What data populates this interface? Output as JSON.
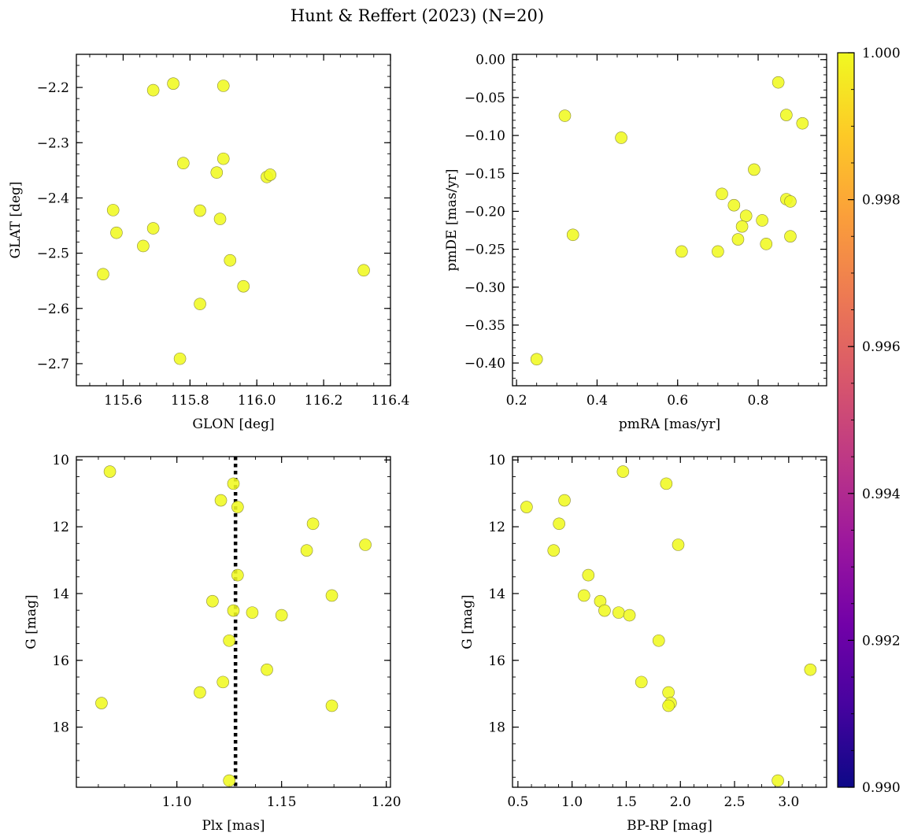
{
  "figure_title": "Hunt & Reffert (2023) (N=20)",
  "colors": {
    "point_fill": "#f0f921",
    "point_edge": "#8a8a3a",
    "colorbar_stops": [
      "#0d0887",
      "#46039f",
      "#7201a8",
      "#9c179e",
      "#bd3786",
      "#d8576b",
      "#ed7953",
      "#fb9f3a",
      "#fdca26",
      "#f0f921"
    ]
  },
  "colorbar": {
    "min": 0.99,
    "max": 1.0,
    "ticks": [
      "0.990",
      "0.992",
      "0.994",
      "0.996",
      "0.998",
      "1.000"
    ]
  },
  "chart_data": [
    {
      "id": "glon-glat",
      "type": "scatter",
      "xlabel": "GLON [deg]",
      "ylabel": "GLAT [deg]",
      "xlim": [
        115.46,
        116.4
      ],
      "ylim": [
        -2.74,
        -2.14
      ],
      "xticks": [
        "115.6",
        "115.8",
        "116.0",
        "116.2",
        "116.4"
      ],
      "yticks": [
        "-2.2",
        "-2.3",
        "-2.4",
        "-2.5",
        "-2.6",
        "-2.7"
      ],
      "yinvert": false,
      "vline": null,
      "x": [
        115.69,
        115.75,
        115.9,
        115.78,
        115.88,
        115.9,
        116.03,
        116.04,
        115.57,
        115.83,
        115.58,
        115.69,
        115.89,
        115.66,
        115.92,
        115.54,
        116.32,
        115.96,
        115.83,
        115.77
      ],
      "y": [
        -2.205,
        -2.193,
        -2.197,
        -2.337,
        -2.354,
        -2.329,
        -2.362,
        -2.358,
        -2.422,
        -2.423,
        -2.463,
        -2.455,
        -2.438,
        -2.487,
        -2.513,
        -2.538,
        -2.531,
        -2.56,
        -2.592,
        -2.691
      ]
    },
    {
      "id": "pmra-pmde",
      "type": "scatter",
      "xlabel": "pmRA [mas/yr]",
      "ylabel": "pmDE [mas/yr]",
      "xlim": [
        0.19,
        0.97
      ],
      "ylim": [
        -0.43,
        0.007
      ],
      "xticks": [
        "0.2",
        "0.4",
        "0.6",
        "0.8"
      ],
      "yticks": [
        "0.00",
        "-0.05",
        "-0.10",
        "-0.15",
        "-0.20",
        "-0.25",
        "-0.30",
        "-0.35",
        "-0.40"
      ],
      "yinvert": false,
      "vline": null,
      "x": [
        0.85,
        0.32,
        0.87,
        0.91,
        0.46,
        0.79,
        0.71,
        0.74,
        0.87,
        0.88,
        0.77,
        0.81,
        0.76,
        0.34,
        0.75,
        0.88,
        0.82,
        0.61,
        0.7,
        0.25
      ],
      "y": [
        -0.03,
        -0.074,
        -0.073,
        -0.084,
        -0.103,
        -0.145,
        -0.177,
        -0.192,
        -0.184,
        -0.187,
        -0.206,
        -0.212,
        -0.22,
        -0.231,
        -0.237,
        -0.233,
        -0.243,
        -0.253,
        -0.253,
        -0.395
      ]
    },
    {
      "id": "plx-g",
      "type": "scatter",
      "xlabel": "Plx [mas]",
      "ylabel": "G [mag]",
      "xlim": [
        1.052,
        1.202
      ],
      "ylim": [
        9.9,
        19.8
      ],
      "xticks": [
        "1.10",
        "1.15",
        "1.20"
      ],
      "yticks": [
        "10",
        "12",
        "14",
        "16",
        "18"
      ],
      "yinvert": true,
      "vline": 1.128,
      "x": [
        1.068,
        1.127,
        1.121,
        1.129,
        1.165,
        1.19,
        1.162,
        1.129,
        1.174,
        1.117,
        1.127,
        1.136,
        1.15,
        1.125,
        1.143,
        1.122,
        1.111,
        1.064,
        1.174,
        1.125
      ],
      "y": [
        10.35,
        10.71,
        11.21,
        11.41,
        11.91,
        12.54,
        12.71,
        13.45,
        14.06,
        14.23,
        14.51,
        14.57,
        14.65,
        15.41,
        16.28,
        16.65,
        16.96,
        17.28,
        17.36,
        19.6
      ]
    },
    {
      "id": "bprp-g",
      "type": "scatter",
      "xlabel": "BP-RP [mag]",
      "ylabel": "G [mag]",
      "xlim": [
        0.45,
        3.35
      ],
      "ylim": [
        9.9,
        19.8
      ],
      "xticks": [
        "0.5",
        "1.0",
        "1.5",
        "2.0",
        "2.5",
        "3.0"
      ],
      "yticks": [
        "10",
        "12",
        "14",
        "16",
        "18"
      ],
      "yinvert": true,
      "vline": null,
      "x": [
        1.47,
        1.87,
        0.93,
        0.58,
        0.88,
        1.98,
        0.83,
        1.15,
        1.11,
        1.26,
        1.3,
        1.43,
        1.53,
        1.8,
        3.2,
        1.64,
        1.89,
        1.91,
        1.89,
        2.9
      ],
      "y": [
        10.35,
        10.71,
        11.21,
        11.41,
        11.91,
        12.54,
        12.71,
        13.45,
        14.06,
        14.23,
        14.51,
        14.57,
        14.65,
        15.41,
        16.28,
        16.65,
        16.96,
        17.28,
        17.36,
        19.6
      ]
    }
  ]
}
